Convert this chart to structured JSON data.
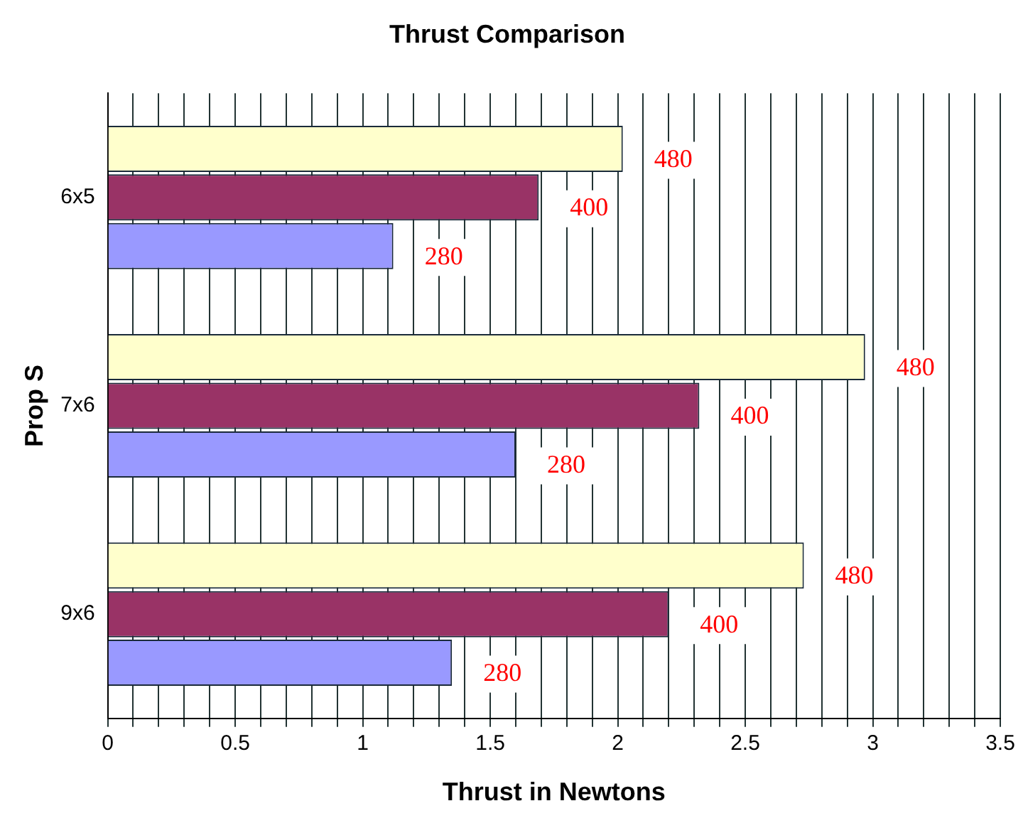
{
  "chart_data": {
    "type": "bar",
    "orientation": "horizontal",
    "title": "Thrust Comparison",
    "xlabel": "Thrust in Newtons",
    "ylabel": "Prop S",
    "categories": [
      "6x5",
      "7x6",
      "9x6"
    ],
    "series": [
      {
        "name": "480",
        "color": "#ffffcc",
        "values": [
          2.02,
          2.97,
          2.73
        ]
      },
      {
        "name": "400",
        "color": "#993366",
        "values": [
          1.69,
          2.32,
          2.2
        ]
      },
      {
        "name": "280",
        "color": "#9999ff",
        "values": [
          1.12,
          1.6,
          1.35
        ]
      }
    ],
    "xlim": [
      0,
      3.5
    ],
    "xticks": [
      0,
      {
        "value": 0.1,
        "label": null
      },
      {
        "value": 0.2,
        "label": null
      },
      {
        "value": 0.3,
        "label": null
      },
      {
        "value": 0.4,
        "label": null
      },
      0.5,
      {
        "value": 0.6,
        "label": null
      },
      {
        "value": 0.7,
        "label": null
      },
      {
        "value": 0.8,
        "label": null
      },
      {
        "value": 0.9,
        "label": null
      },
      1,
      {
        "value": 1.1,
        "label": null
      },
      {
        "value": 1.2,
        "label": null
      },
      {
        "value": 1.3,
        "label": null
      },
      {
        "value": 1.4,
        "label": null
      },
      1.5,
      {
        "value": 1.6,
        "label": null
      },
      {
        "value": 1.7,
        "label": null
      },
      {
        "value": 1.8,
        "label": null
      },
      {
        "value": 1.9,
        "label": null
      },
      2,
      {
        "value": 2.1,
        "label": null
      },
      {
        "value": 2.2,
        "label": null
      },
      {
        "value": 2.3,
        "label": null
      },
      {
        "value": 2.4,
        "label": null
      },
      2.5,
      {
        "value": 2.6,
        "label": null
      },
      {
        "value": 2.7,
        "label": null
      },
      {
        "value": 2.8,
        "label": null
      },
      {
        "value": 2.9,
        "label": null
      },
      3,
      {
        "value": 3.1,
        "label": null
      },
      {
        "value": 3.2,
        "label": null
      },
      {
        "value": 3.3,
        "label": null
      },
      {
        "value": 3.4,
        "label": null
      },
      3.5
    ],
    "grid": "x",
    "legend": false
  }
}
